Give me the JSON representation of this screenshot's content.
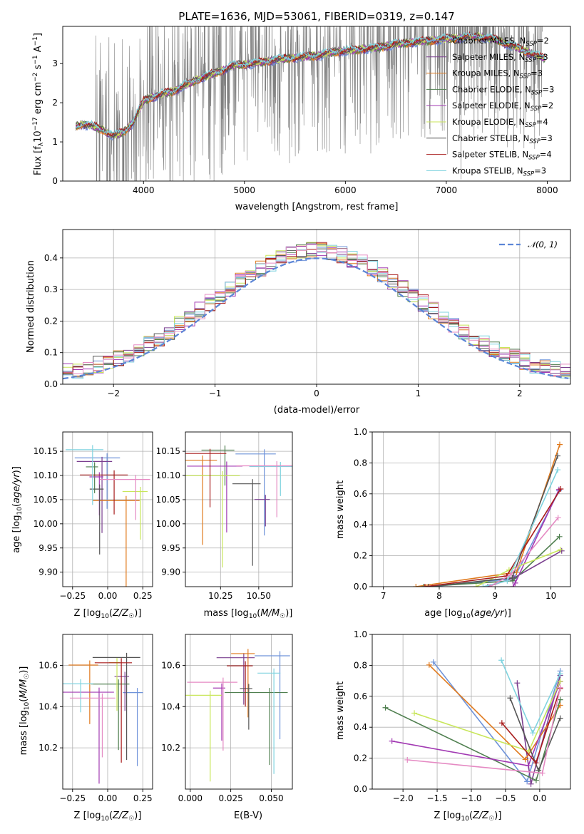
{
  "colors": {
    "Chabrier MILES": "#6f93d9",
    "Salpeter MILES": "#7a3f8f",
    "Kroupa MILES": "#e07a1e",
    "Chabrier ELODIE": "#4f7f4f",
    "Salpeter ELODIE": "#a23ab3",
    "Kroupa ELODIE": "#c8e65a",
    "Chabrier STELIB": "#555555",
    "Salpeter STELIB": "#a81c1c",
    "Kroupa STELIB": "#7fd3df",
    "data": "#808080",
    "normal": "#5b85d6",
    "pink": "#e58ac3"
  },
  "chart_data": [
    {
      "id": "spectrum",
      "type": "line",
      "title": "PLATE=1636, MJD=53061, FIBERID=0319, z=0.147",
      "xlabel": "wavelength [Angstrom, rest frame]",
      "ylabel": "Flux [f_λ 10^-17 erg cm^-2 s^-1 A^-1]",
      "xlim": [
        3200,
        8230
      ],
      "ylim": [
        0,
        3.95
      ],
      "xticks": [
        4000,
        5000,
        6000,
        7000,
        8000
      ],
      "yticks": [
        0,
        1,
        2,
        3
      ],
      "legend": [
        {
          "label": "Chabrier MILES, N",
          "sub": "SSP",
          "tail": "=2",
          "color": "Chabrier MILES"
        },
        {
          "label": "Salpeter MILES, N",
          "sub": "SSP",
          "tail": "=3",
          "color": "Salpeter MILES"
        },
        {
          "label": "Kroupa MILES, N",
          "sub": "SSP",
          "tail": "=3",
          "color": "Kroupa MILES"
        },
        {
          "label": "Chabrier ELODIE, N",
          "sub": "SSP",
          "tail": "=3",
          "color": "Chabrier ELODIE"
        },
        {
          "label": "Salpeter ELODIE, N",
          "sub": "SSP",
          "tail": "=2",
          "color": "Salpeter ELODIE"
        },
        {
          "label": "Kroupa ELODIE, N",
          "sub": "SSP",
          "tail": "=4",
          "color": "Kroupa ELODIE"
        },
        {
          "label": "Chabrier STELIB, N",
          "sub": "SSP",
          "tail": "=3",
          "color": "Chabrier STELIB"
        },
        {
          "label": "Salpeter STELIB, N",
          "sub": "SSP",
          "tail": "=4",
          "color": "Salpeter STELIB"
        },
        {
          "label": "Kroupa STELIB, N",
          "sub": "SSP",
          "tail": "=3",
          "color": "Kroupa STELIB"
        }
      ],
      "legend_position": "top-right",
      "continuum": [
        [
          3330,
          1.4
        ],
        [
          3400,
          1.45
        ],
        [
          3500,
          1.4
        ],
        [
          3600,
          1.3
        ],
        [
          3700,
          1.15
        ],
        [
          3800,
          1.25
        ],
        [
          3900,
          1.5
        ],
        [
          4000,
          2.05
        ],
        [
          4100,
          2.15
        ],
        [
          4300,
          2.3
        ],
        [
          4500,
          2.55
        ],
        [
          4700,
          2.75
        ],
        [
          4900,
          2.95
        ],
        [
          5100,
          3.0
        ],
        [
          5300,
          3.1
        ],
        [
          5500,
          3.15
        ],
        [
          5700,
          3.2
        ],
        [
          5900,
          3.3
        ],
        [
          6100,
          3.35
        ],
        [
          6300,
          3.4
        ],
        [
          6500,
          3.5
        ],
        [
          6700,
          3.55
        ],
        [
          6900,
          3.6
        ],
        [
          7100,
          3.65
        ],
        [
          7300,
          3.7
        ],
        [
          7500,
          3.6
        ],
        [
          7700,
          3.4
        ],
        [
          7900,
          3.2
        ],
        [
          8000,
          3.1
        ]
      ]
    },
    {
      "id": "residuals",
      "type": "line",
      "xlabel": "(data-model)/error",
      "ylabel": "Normed distribution",
      "xlim": [
        -2.5,
        2.5
      ],
      "ylim": [
        0,
        0.49
      ],
      "xticks": [
        -2,
        -1,
        0,
        1,
        2
      ],
      "yticks": [
        0.0,
        0.1,
        0.2,
        0.3,
        0.4
      ],
      "grid": true,
      "legend_label": "N(0,1)",
      "legend_position": "top-right"
    },
    {
      "id": "age_vs_Z",
      "type": "scatter",
      "xlabel": "Z [log10(Z/Z☉)]",
      "ylabel": "age [log10(age/yr)]",
      "xlim": [
        -0.32,
        0.32
      ],
      "ylim": [
        9.87,
        10.19
      ],
      "xticks": [
        -0.25,
        0.0,
        0.25
      ],
      "yticks": [
        9.9,
        9.95,
        10.0,
        10.05,
        10.1,
        10.15
      ],
      "grid": true
    },
    {
      "id": "age_vs_mass",
      "type": "scatter",
      "xlabel": "mass [log10(M/M☉)]",
      "xlim": [
        10.02,
        10.72
      ],
      "ylim": [
        9.87,
        10.19
      ],
      "xticks": [
        10.25,
        10.5
      ],
      "yticks": [
        9.9,
        9.95,
        10.0,
        10.05,
        10.1,
        10.15
      ],
      "grid": true
    },
    {
      "id": "weight_vs_age",
      "type": "line",
      "xlabel": "age [log10(age/yr)]",
      "ylabel": "mass weight",
      "xlim": [
        6.8,
        10.35
      ],
      "ylim": [
        0,
        1.0
      ],
      "xticks": [
        7,
        8,
        9,
        10
      ],
      "yticks": [
        0.0,
        0.2,
        0.4,
        0.6,
        0.8,
        1.0
      ],
      "grid": true
    },
    {
      "id": "mass_vs_Z",
      "type": "scatter",
      "xlabel": "Z [log10(Z/Z☉)]",
      "ylabel": "mass [log10(M/M☉)]",
      "xlim": [
        -0.32,
        0.32
      ],
      "ylim": [
        10.0,
        10.75
      ],
      "xticks": [
        -0.25,
        0.0,
        0.25
      ],
      "yticks": [
        10.2,
        10.4,
        10.6
      ],
      "grid": true
    },
    {
      "id": "mass_vs_ebv",
      "type": "scatter",
      "xlabel": "E(B-V)",
      "xlim": [
        -0.003,
        0.063
      ],
      "ylim": [
        10.0,
        10.75
      ],
      "xticks": [
        0.0,
        0.025,
        0.05
      ],
      "yticks": [
        10.2,
        10.4,
        10.6
      ],
      "grid": true
    },
    {
      "id": "weight_vs_Z",
      "type": "line",
      "xlabel": "Z [log10(Z/Z☉)]",
      "ylabel": "mass weight",
      "xlim": [
        -2.45,
        0.45
      ],
      "ylim": [
        0,
        1.0
      ],
      "xticks": [
        -2.0,
        -1.5,
        -1.0,
        -0.5,
        0.0
      ],
      "yticks": [
        0.0,
        0.2,
        0.4,
        0.6,
        0.8,
        1.0
      ],
      "grid": true
    }
  ]
}
